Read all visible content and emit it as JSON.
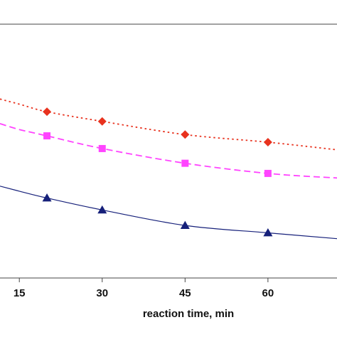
{
  "chart_data": {
    "type": "line",
    "title": "",
    "xlabel": "reaction time, min",
    "ylabel": "",
    "xlim": [
      11.5,
      72.5
    ],
    "ylim": [
      0,
      1
    ],
    "x_ticks": [
      15,
      30,
      45,
      60
    ],
    "grid": false,
    "legend": "none",
    "series": [
      {
        "color": "#e8321e",
        "marker": "diamond",
        "line_style": "dotted",
        "points": [
          [
            20,
            0.655
          ],
          [
            30,
            0.617
          ],
          [
            45,
            0.565
          ],
          [
            60,
            0.535
          ]
        ],
        "curve": [
          [
            11.5,
            0.705
          ],
          [
            15,
            0.685
          ],
          [
            20,
            0.655
          ],
          [
            30,
            0.617
          ],
          [
            45,
            0.565
          ],
          [
            60,
            0.535
          ],
          [
            72.5,
            0.505
          ]
        ]
      },
      {
        "color": "#ff44ff",
        "marker": "square",
        "line_style": "dashed",
        "points": [
          [
            20,
            0.56
          ],
          [
            30,
            0.51
          ],
          [
            45,
            0.452
          ],
          [
            60,
            0.412
          ]
        ],
        "curve": [
          [
            11.5,
            0.608
          ],
          [
            15,
            0.585
          ],
          [
            20,
            0.56
          ],
          [
            30,
            0.51
          ],
          [
            45,
            0.452
          ],
          [
            60,
            0.412
          ],
          [
            72.5,
            0.394
          ]
        ]
      },
      {
        "color": "#16207a",
        "marker": "triangle",
        "line_style": "solid",
        "points": [
          [
            20,
            0.315
          ],
          [
            30,
            0.268
          ],
          [
            45,
            0.207
          ],
          [
            60,
            0.178
          ]
        ],
        "curve": [
          [
            11.5,
            0.362
          ],
          [
            15,
            0.342
          ],
          [
            20,
            0.315
          ],
          [
            30,
            0.268
          ],
          [
            45,
            0.207
          ],
          [
            60,
            0.178
          ],
          [
            72.5,
            0.155
          ]
        ]
      }
    ]
  }
}
